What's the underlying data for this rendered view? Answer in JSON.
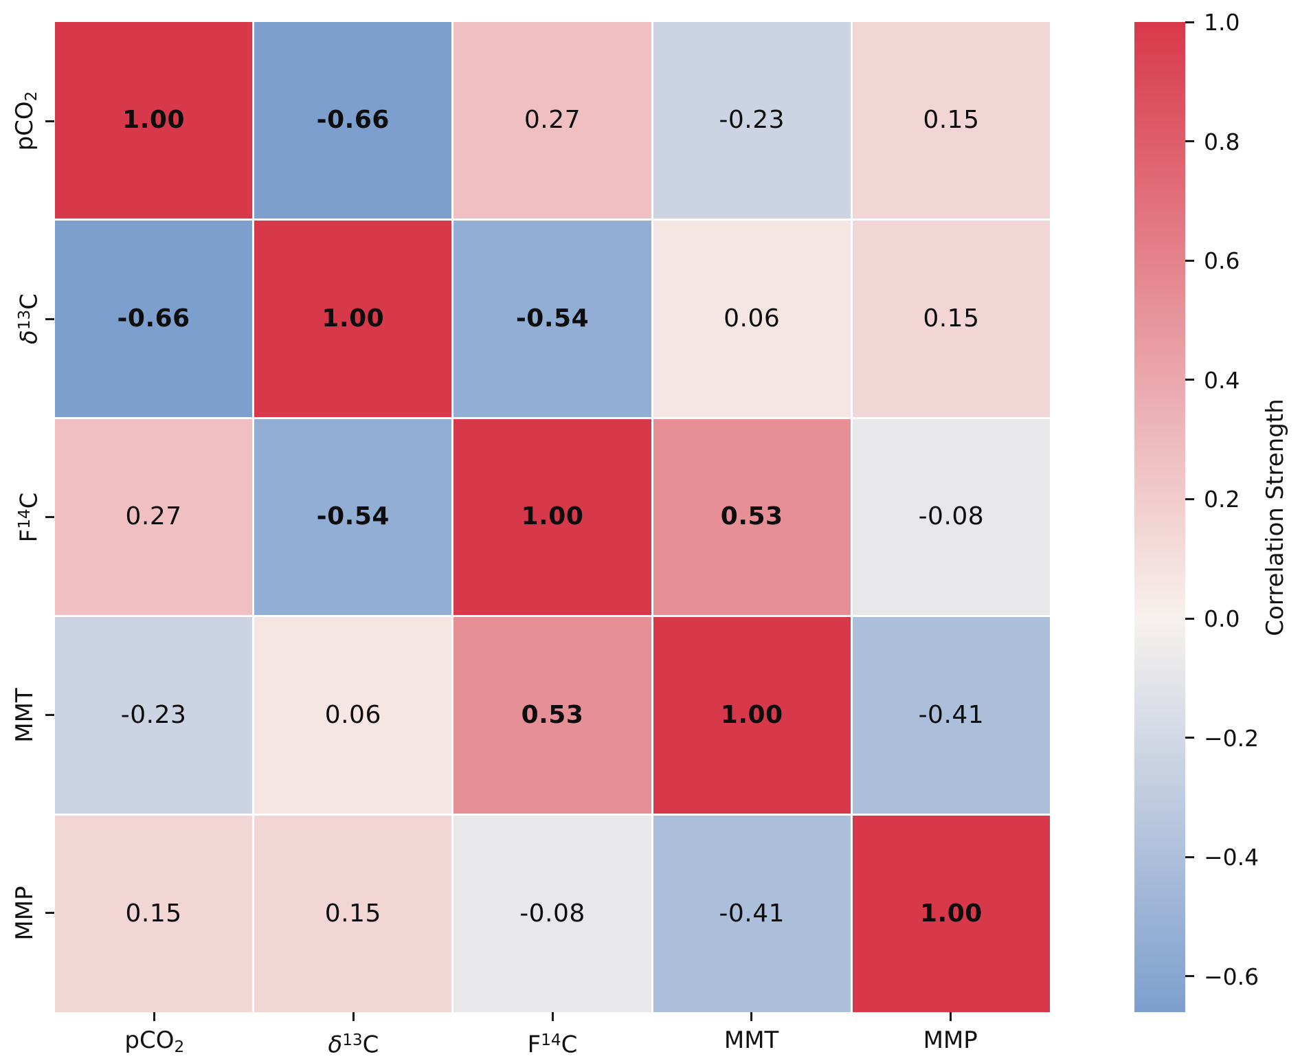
{
  "chart_data": {
    "type": "heatmap",
    "title": "",
    "categories": [
      "pCO2",
      "delta13C",
      "F14C",
      "MMT",
      "MMP"
    ],
    "axis_label_segments": [
      [
        {
          "t": "pCO"
        },
        {
          "t": "2",
          "fmt": "sub"
        }
      ],
      [
        {
          "t": "δ",
          "fmt": "italic"
        },
        {
          "t": "13",
          "fmt": "sup"
        },
        {
          "t": "C"
        }
      ],
      [
        {
          "t": "F"
        },
        {
          "t": "14",
          "fmt": "sup"
        },
        {
          "t": "C"
        }
      ],
      [
        {
          "t": "MMT"
        }
      ],
      [
        {
          "t": "MMP"
        }
      ]
    ],
    "matrix": [
      [
        1.0,
        -0.66,
        0.27,
        -0.23,
        0.15
      ],
      [
        -0.66,
        1.0,
        -0.54,
        0.06,
        0.15
      ],
      [
        0.27,
        -0.54,
        1.0,
        0.53,
        -0.08
      ],
      [
        -0.23,
        0.06,
        0.53,
        1.0,
        -0.41
      ],
      [
        0.15,
        0.15,
        -0.08,
        -0.41,
        1.0
      ]
    ],
    "annotations": [
      [
        "1.00",
        "-0.66",
        "0.27",
        "-0.23",
        "0.15"
      ],
      [
        "-0.66",
        "1.00",
        "-0.54",
        "0.06",
        "0.15"
      ],
      [
        "0.27",
        "-0.54",
        "1.00",
        "0.53",
        "-0.08"
      ],
      [
        "-0.23",
        "0.06",
        "0.53",
        "1.00",
        "-0.41"
      ],
      [
        "0.15",
        "0.15",
        "-0.08",
        "-0.41",
        "1.00"
      ]
    ],
    "bold_threshold": 0.5,
    "grid_on": false,
    "colormap": {
      "negative_end": "#7d9fce",
      "center": "#f7f1ee",
      "positive_end": "#d8394a"
    },
    "colorbar": {
      "label": "Correlation Strength",
      "vmin": -0.66,
      "vmax": 1.0,
      "tick_values": [
        1.0,
        0.8,
        0.6,
        0.4,
        0.2,
        0.0,
        -0.2,
        -0.4,
        -0.6
      ],
      "tick_labels": [
        "1.0",
        "0.8",
        "0.6",
        "0.4",
        "0.2",
        "0.0",
        "−0.2",
        "−0.4",
        "−0.6"
      ],
      "legend_position": "right"
    }
  }
}
